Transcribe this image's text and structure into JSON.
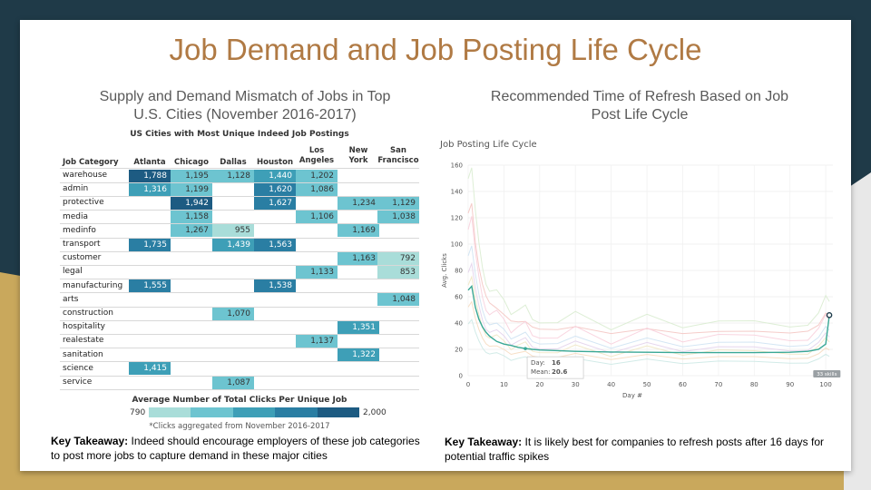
{
  "title": "Job Demand and Job Posting Life Cycle",
  "left_panel": {
    "subtitle_line1": "Supply and Demand Mismatch of Jobs in Top",
    "subtitle_line2": "U.S. Cities (November 2016-2017)",
    "takeaway_label": "Key Takeaway:",
    "takeaway_text": " Indeed should encourage employers of these job categories to post more jobs to capture demand in these major cities"
  },
  "right_panel": {
    "subtitle_line1": "Recommended Time of Refresh Based on Job",
    "subtitle_line2": "Post Life Cycle",
    "takeaway_label": "Key Takeaway:",
    "takeaway_text": " It is likely best for companies to refresh posts after 16 days for potential traffic spikes"
  },
  "colors": {
    "background": "#1f3a48",
    "gold": "#c9a85c",
    "title": "#b07a44",
    "scale": [
      "#a9ddd9",
      "#6dc4d0",
      "#3e9fb7",
      "#2a7ea3",
      "#1d5b82"
    ]
  },
  "chart_data": [
    {
      "type": "heatmap",
      "title": "US Cities with Most Unique Indeed Job Postings",
      "row_header": "Job Category",
      "columns": [
        "Atlanta",
        "Chicago",
        "Dallas",
        "Houston",
        "Los Angeles",
        "New York",
        "San Francisco"
      ],
      "rows": [
        "warehouse",
        "admin",
        "protective",
        "media",
        "medinfo",
        "transport",
        "customer",
        "legal",
        "manufacturing",
        "arts",
        "construction",
        "hospitality",
        "realestate",
        "sanitation",
        "science",
        "service"
      ],
      "values": [
        [
          1788,
          1195,
          1128,
          1440,
          1202,
          null,
          null
        ],
        [
          1316,
          1199,
          null,
          1620,
          1086,
          null,
          null
        ],
        [
          null,
          1942,
          null,
          1627,
          null,
          1234,
          1129
        ],
        [
          null,
          1158,
          null,
          null,
          1106,
          null,
          1038
        ],
        [
          null,
          1267,
          955,
          null,
          null,
          1169,
          null
        ],
        [
          1735,
          null,
          1439,
          1563,
          null,
          null,
          null
        ],
        [
          null,
          null,
          null,
          null,
          null,
          1163,
          792
        ],
        [
          null,
          null,
          null,
          null,
          1133,
          null,
          853
        ],
        [
          1555,
          null,
          null,
          1538,
          null,
          null,
          null
        ],
        [
          null,
          null,
          null,
          null,
          null,
          null,
          1048
        ],
        [
          null,
          null,
          1070,
          null,
          null,
          null,
          null
        ],
        [
          null,
          null,
          null,
          null,
          null,
          1351,
          null
        ],
        [
          null,
          null,
          null,
          null,
          1137,
          null,
          null
        ],
        [
          null,
          null,
          null,
          null,
          null,
          1322,
          null
        ],
        [
          1415,
          null,
          null,
          null,
          null,
          null,
          null
        ],
        [
          null,
          null,
          1087,
          null,
          null,
          null,
          null
        ]
      ],
      "value_labels": [
        [
          "1,788",
          "1,195",
          "1,128",
          "1,440",
          "1,202",
          "",
          ""
        ],
        [
          "1,316",
          "1,199",
          "",
          "1,620",
          "1,086",
          "",
          ""
        ],
        [
          "",
          "1,942",
          "",
          "1,627",
          "",
          "1,234",
          "1,129"
        ],
        [
          "",
          "1,158",
          "",
          "",
          "1,106",
          "",
          "1,038"
        ],
        [
          "",
          "1,267",
          "955",
          "",
          "",
          "1,169",
          ""
        ],
        [
          "1,735",
          "",
          "1,439",
          "1,563",
          "",
          "",
          ""
        ],
        [
          "",
          "",
          "",
          "",
          "",
          "1,163",
          "792"
        ],
        [
          "",
          "",
          "",
          "",
          "1,133",
          "",
          "853"
        ],
        [
          "1,555",
          "",
          "",
          "1,538",
          "",
          "",
          ""
        ],
        [
          "",
          "",
          "",
          "",
          "",
          "",
          "1,048"
        ],
        [
          "",
          "",
          "1,070",
          "",
          "",
          "",
          ""
        ],
        [
          "",
          "",
          "",
          "",
          "",
          "1,351",
          ""
        ],
        [
          "",
          "",
          "",
          "",
          "1,137",
          "",
          ""
        ],
        [
          "",
          "",
          "",
          "",
          "",
          "1,322",
          ""
        ],
        [
          "1,415",
          "",
          "",
          "",
          "",
          "",
          ""
        ],
        [
          "",
          "",
          "1,087",
          "",
          "",
          "",
          ""
        ]
      ],
      "legend_title": "Average Number of Total Clicks Per Unique Job",
      "legend_min": "790",
      "legend_max": "2,000",
      "legend_range": [
        790,
        2000
      ],
      "note": "*Clicks aggregated from November 2016-2017"
    },
    {
      "type": "line",
      "title": "Job Posting Life Cycle",
      "xlabel": "Day #",
      "ylabel": "Avg. Clicks",
      "xlim": [
        0,
        102
      ],
      "ylim": [
        0,
        160
      ],
      "xticks": [
        "0",
        "10",
        "20",
        "30",
        "40",
        "50",
        "60",
        "70",
        "80",
        "90",
        "100"
      ],
      "yticks": [
        "0",
        "20",
        "40",
        "60",
        "80",
        "100",
        "120",
        "140",
        "160"
      ],
      "grid": true,
      "series": [
        {
          "name": "Mean",
          "x": [
            0,
            1,
            2,
            3,
            4,
            5,
            6,
            7,
            8,
            10,
            12,
            14,
            16,
            18,
            20,
            25,
            30,
            40,
            50,
            60,
            70,
            80,
            90,
            95,
            98,
            100,
            101
          ],
          "y": [
            65,
            68,
            52,
            43,
            37,
            33,
            30,
            28,
            26,
            24,
            23,
            21.5,
            20.6,
            20,
            19.5,
            19,
            18.5,
            18,
            17.8,
            17.5,
            17.5,
            17.5,
            17.8,
            18.5,
            20,
            24,
            46
          ]
        }
      ],
      "tooltip_day_label": "Day:",
      "tooltip_day": "16",
      "tooltip_mean_label": "Mean:",
      "tooltip_mean": "20.6",
      "badge": "33 skills"
    }
  ]
}
